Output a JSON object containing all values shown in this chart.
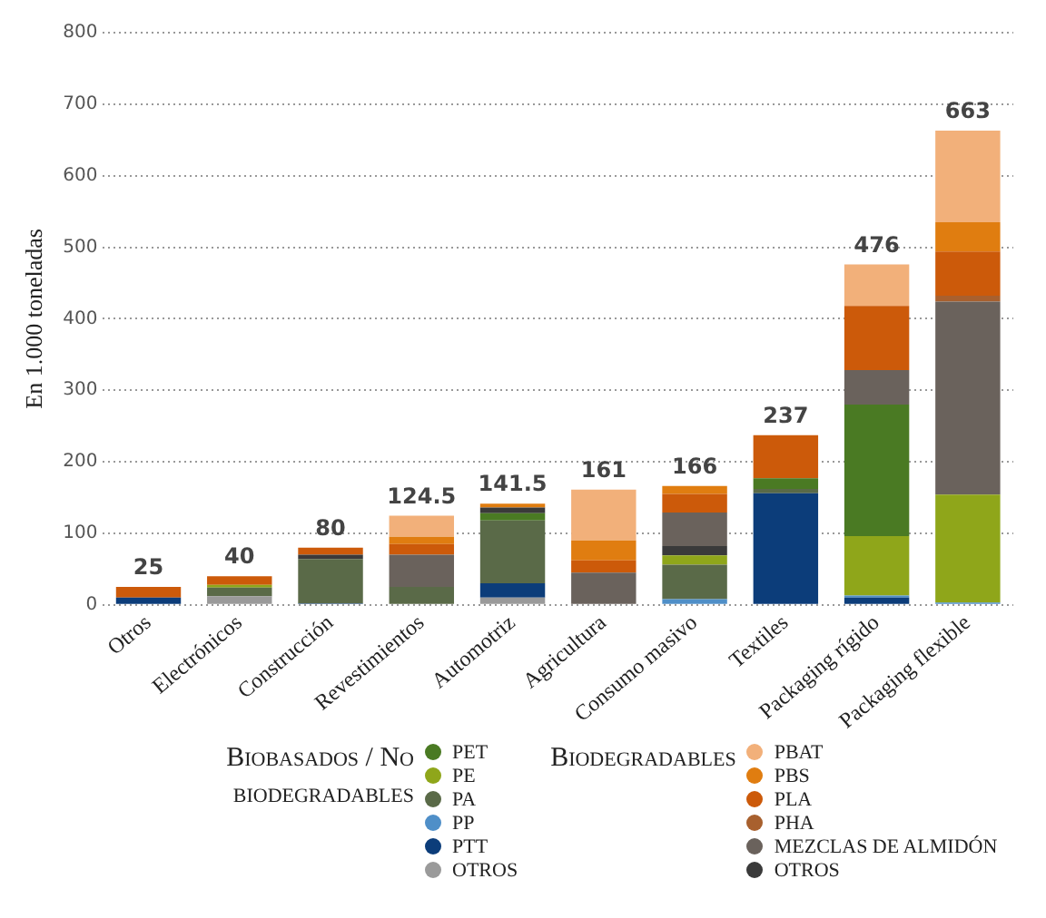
{
  "chart_data": {
    "type": "bar",
    "stacked": true,
    "ylabel": "En 1.000 toneladas",
    "categories": [
      "Otros",
      "Electrónicos",
      "Construcción",
      "Revestimientos",
      "Automotriz",
      "Agricultura",
      "Consumo masivo",
      "Textiles",
      "Packaging rígido",
      "Packaging flexible"
    ],
    "series": [
      {
        "name": "OTROS",
        "color": "#9a9a9a",
        "values": [
          0,
          12,
          0,
          0,
          10,
          0,
          0,
          0,
          0,
          0
        ]
      },
      {
        "name": "PTT",
        "color": "#0c3d7a",
        "values": [
          10,
          0,
          2,
          0,
          20,
          0,
          0,
          156,
          10,
          0
        ]
      },
      {
        "name": "PP",
        "color": "#4f8fc8",
        "values": [
          0,
          0,
          0,
          0,
          0,
          0,
          8,
          0,
          3,
          3
        ]
      },
      {
        "name": "PA",
        "color": "#5a6a48",
        "values": [
          0,
          12,
          62,
          25,
          88,
          0,
          48,
          6,
          0,
          0
        ]
      },
      {
        "name": "PE",
        "color": "#8fa61a",
        "values": [
          0,
          4,
          0,
          0,
          0,
          0,
          13,
          0,
          83,
          151
        ]
      },
      {
        "name": "PET",
        "color": "#4a7a23",
        "values": [
          0,
          0,
          0,
          0,
          10,
          0,
          0,
          15,
          184,
          0
        ]
      },
      {
        "name": "OTROS",
        "color": "#3a3a3a",
        "values": [
          0,
          0,
          6,
          0,
          8,
          0,
          13,
          0,
          0,
          0
        ]
      },
      {
        "name": "MEZCLAS DE ALMIDÓN",
        "color": "#6a625c",
        "values": [
          0,
          0,
          0,
          45,
          0,
          45,
          47,
          0,
          48,
          270
        ]
      },
      {
        "name": "PHA",
        "color": "#a8602e",
        "values": [
          0,
          0,
          0,
          0,
          0,
          0,
          0,
          0,
          0,
          8
        ]
      },
      {
        "name": "PLA",
        "color": "#cc5a0a",
        "values": [
          15,
          12,
          10,
          15,
          0,
          17,
          26,
          60,
          90,
          62
        ]
      },
      {
        "name": "PBS",
        "color": "#e07d10",
        "values": [
          0,
          0,
          0,
          10,
          5.5,
          28,
          11,
          0,
          0,
          41
        ]
      },
      {
        "name": "PBAT",
        "color": "#f2b07a",
        "values": [
          0,
          0,
          0,
          29.5,
          0,
          71,
          0,
          0,
          58,
          128
        ]
      }
    ],
    "totals": [
      "25",
      "40",
      "80",
      "124.5",
      "141.5",
      "161",
      "166",
      "237",
      "476",
      "663"
    ],
    "ylim": [
      0,
      800
    ],
    "yticks": [
      0,
      100,
      200,
      300,
      400,
      500,
      600,
      700,
      800
    ],
    "grid": "y",
    "legend": "bottom",
    "annotations": [
      "Biobasados / No biodegradables",
      "Biodegradables"
    ]
  }
}
